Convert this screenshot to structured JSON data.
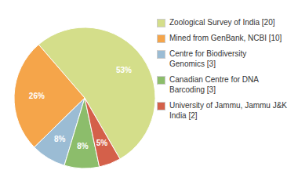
{
  "chart_data": {
    "type": "pie",
    "categories": [
      "Zoological Survey of India [20]",
      "Mined from GenBank, NCBI [10]",
      "Centre for Biodiversity\nGenomics [3]",
      "Canadian Centre for DNA\nBarcoding [3]",
      "University of Jammu, Jammu J&K\nIndia [2]"
    ],
    "values": [
      53,
      26,
      8,
      8,
      5
    ],
    "value_labels": [
      "53%",
      "26%",
      "8%",
      "8%",
      "5%"
    ],
    "colors": [
      "#d4de8a",
      "#f5a54a",
      "#9bbcd4",
      "#8cbd6b",
      "#d4604a"
    ],
    "data_labels": true,
    "legend": "upper right"
  }
}
